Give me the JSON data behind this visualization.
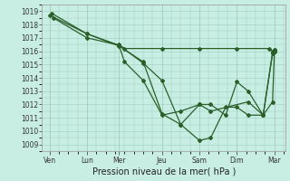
{
  "xlabel": "Pression niveau de la mer( hPa )",
  "bg_color": "#c8eee4",
  "line_color": "#2a5f2a",
  "grid_color": "#a0ccbb",
  "ylim": [
    1008.5,
    1019.5
  ],
  "yticks": [
    1009,
    1010,
    1011,
    1012,
    1013,
    1014,
    1015,
    1016,
    1017,
    1018,
    1019
  ],
  "xtick_labels": [
    "Ven",
    "Lun",
    "Mer",
    "",
    "Jeu",
    "",
    "Sam",
    "",
    "Dim",
    "",
    "",
    "Mar"
  ],
  "xlim": [
    -0.2,
    6.3
  ],
  "lines": [
    {
      "x": [
        1.85,
        2.0,
        3.0,
        4.0,
        5.0,
        5.85,
        5.95,
        6.0
      ],
      "y": [
        1016.5,
        1016.2,
        1016.2,
        1016.2,
        1016.2,
        1016.2,
        1016.0,
        1016.1
      ],
      "marker": "D",
      "markersize": 2.0,
      "lw": 0.9
    },
    {
      "x": [
        0.0,
        1.0,
        1.85,
        2.5,
        3.0,
        3.5,
        4.0,
        4.3,
        4.7,
        5.0,
        5.3,
        5.7,
        5.95,
        6.0
      ],
      "y": [
        1018.7,
        1017.3,
        1016.4,
        1015.2,
        1011.3,
        1010.5,
        1009.3,
        1009.5,
        1011.8,
        1011.8,
        1011.2,
        1011.2,
        1015.9,
        1016.1
      ],
      "marker": "D",
      "markersize": 2.0,
      "lw": 0.9
    },
    {
      "x": [
        0.05,
        1.0,
        1.85,
        2.0,
        2.5,
        3.0,
        3.5,
        4.0,
        4.3,
        4.7,
        5.0,
        5.3,
        5.7,
        5.95,
        6.0
      ],
      "y": [
        1018.85,
        1017.3,
        1016.45,
        1015.2,
        1013.8,
        1011.2,
        1011.5,
        1012.0,
        1012.0,
        1011.2,
        1013.7,
        1013.0,
        1011.2,
        1012.2,
        1016.0
      ],
      "marker": "D",
      "markersize": 2.0,
      "lw": 0.9
    },
    {
      "x": [
        0.1,
        1.0,
        1.85,
        2.5,
        3.0,
        3.5,
        4.0,
        4.3,
        5.3,
        5.7,
        5.95,
        6.0
      ],
      "y": [
        1018.5,
        1017.0,
        1016.45,
        1015.1,
        1013.8,
        1010.5,
        1012.0,
        1011.5,
        1012.2,
        1011.2,
        1015.8,
        1016.0
      ],
      "marker": "D",
      "markersize": 2.0,
      "lw": 0.9
    }
  ],
  "day_ticks": [
    0,
    1,
    1.85,
    3.0,
    4.0,
    5.0,
    6.0
  ],
  "day_labels": [
    "Ven",
    "Lun",
    "Mer",
    "Jeu",
    "Sam",
    "Dim",
    "Mar"
  ],
  "xlabel_fontsize": 7,
  "tick_fontsize": 5.5
}
